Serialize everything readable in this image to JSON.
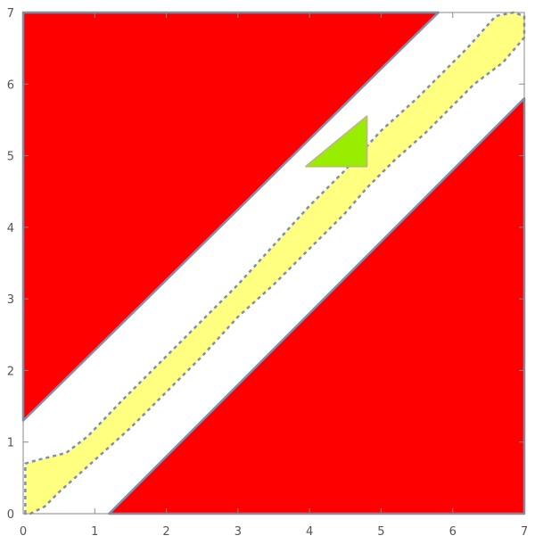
{
  "chart_data": {
    "type": "region_plot_with_vector_field",
    "title": "",
    "xlabel": "",
    "ylabel": "",
    "xlim": [
      0,
      7
    ],
    "ylim": [
      0,
      7
    ],
    "x_ticks": [
      {
        "value": 0,
        "label": "0"
      },
      {
        "value": 1,
        "label": "1"
      },
      {
        "value": 2,
        "label": "2"
      },
      {
        "value": 3,
        "label": "3"
      },
      {
        "value": 4,
        "label": "4"
      },
      {
        "value": 5,
        "label": "5"
      },
      {
        "value": 6,
        "label": "6"
      },
      {
        "value": 7,
        "label": "7"
      }
    ],
    "y_ticks": [
      {
        "value": 0,
        "label": "0"
      },
      {
        "value": 1,
        "label": "1"
      },
      {
        "value": 2,
        "label": "2"
      },
      {
        "value": 3,
        "label": "3"
      },
      {
        "value": 4,
        "label": "4"
      },
      {
        "value": 5,
        "label": "5"
      },
      {
        "value": 6,
        "label": "6"
      },
      {
        "value": 7,
        "label": "7"
      }
    ],
    "grid": false,
    "frame": "box",
    "colors": {
      "unsafe": "#ff0000",
      "invariant": "#ffff80",
      "target": "#99ee00",
      "boundary": "#7f8fb0",
      "arrow_band": "#00008b",
      "arrow_invariant": "#9a9a6a",
      "axis": "#888888",
      "tick_text": "#555555"
    },
    "regions": [
      {
        "role": "unsafe-upper-left",
        "fill": "unsafe",
        "points": [
          [
            0,
            1.3
          ],
          [
            0,
            7
          ],
          [
            5.8,
            7
          ]
        ]
      },
      {
        "role": "unsafe-lower-right",
        "fill": "unsafe",
        "points": [
          [
            1.2,
            0
          ],
          [
            7,
            0
          ],
          [
            7,
            5.8
          ]
        ]
      },
      {
        "role": "invariant-set",
        "fill": "invariant",
        "dashed": true,
        "points": [
          [
            0.03,
            0.0
          ],
          [
            0.03,
            0.7
          ],
          [
            0.2,
            0.75
          ],
          [
            0.6,
            0.85
          ],
          [
            0.9,
            1.08
          ],
          [
            1.4,
            1.6
          ],
          [
            2.0,
            2.2
          ],
          [
            2.5,
            2.7
          ],
          [
            3.0,
            3.2
          ],
          [
            3.5,
            3.75
          ],
          [
            4.0,
            4.3
          ],
          [
            4.5,
            4.8
          ],
          [
            5.0,
            5.35
          ],
          [
            5.5,
            5.8
          ],
          [
            5.9,
            6.2
          ],
          [
            6.2,
            6.5
          ],
          [
            6.6,
            6.95
          ],
          [
            6.85,
            7.0
          ],
          [
            7.0,
            6.95
          ],
          [
            7.0,
            6.65
          ],
          [
            6.7,
            6.3
          ],
          [
            6.3,
            6.0
          ],
          [
            6.0,
            5.7
          ],
          [
            5.6,
            5.3
          ],
          [
            5.2,
            4.95
          ],
          [
            4.8,
            4.55
          ],
          [
            4.5,
            4.2
          ],
          [
            4.0,
            3.7
          ],
          [
            3.5,
            3.2
          ],
          [
            3.0,
            2.75
          ],
          [
            2.5,
            2.2
          ],
          [
            2.0,
            1.7
          ],
          [
            1.5,
            1.2
          ],
          [
            1.0,
            0.75
          ],
          [
            0.5,
            0.3
          ],
          [
            0.3,
            0.1
          ],
          [
            0.1,
            0.0
          ]
        ]
      },
      {
        "role": "target-set",
        "fill": "target",
        "points": [
          [
            3.95,
            4.85
          ],
          [
            4.8,
            5.55
          ],
          [
            4.8,
            4.85
          ]
        ]
      }
    ],
    "vector_field": {
      "direction": [
        -0.7071,
        -0.7071
      ],
      "grid_step": 0.5,
      "min_offset": -1.0,
      "max_offset": 1.0
    }
  }
}
